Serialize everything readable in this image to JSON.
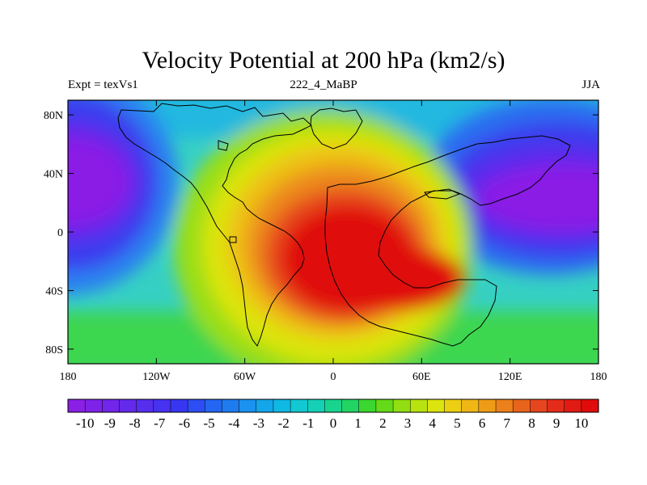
{
  "title": "Velocity Potential at 200 hPa (km2/s)",
  "left_subtitle": "Expt = texVs1",
  "center_subtitle": "222_4_MaBP",
  "right_subtitle": "JJA",
  "map": {
    "type": "filled-contour-map",
    "lon_range": [
      -180,
      180
    ],
    "lat_range": [
      -90,
      90
    ],
    "x_tick_labels": [
      "180",
      "120W",
      "60W",
      "0",
      "60E",
      "120E",
      "180"
    ],
    "x_tick_values": [
      -180,
      -120,
      -60,
      0,
      60,
      120,
      180
    ],
    "y_tick_labels": [
      "80N",
      "40N",
      "0",
      "40S",
      "80S"
    ],
    "y_tick_values": [
      80,
      40,
      0,
      -40,
      -80
    ],
    "field_features": [
      {
        "kind": "max",
        "lon": 5,
        "lat": -25,
        "value": 10
      },
      {
        "kind": "min",
        "lon": 140,
        "lat": 25,
        "value": -10
      },
      {
        "kind": "min",
        "lon": -175,
        "lat": 30,
        "value": -10
      }
    ]
  },
  "colorbar": {
    "labels": [
      "-10",
      "-9",
      "-8",
      "-7",
      "-6",
      "-5",
      "-4",
      "-3",
      "-2",
      "-1",
      "0",
      "1",
      "2",
      "3",
      "4",
      "5",
      "6",
      "7",
      "8",
      "9",
      "10"
    ],
    "colors": [
      "#8a1fe6",
      "#7e22e8",
      "#7126ea",
      "#632aec",
      "#552eee",
      "#4632ef",
      "#3736f0",
      "#2c4ef2",
      "#2466f2",
      "#1f7cf0",
      "#1a92ee",
      "#14a6ea",
      "#10b8e4",
      "#12c8d2",
      "#14d0b6",
      "#18d48e",
      "#22d464",
      "#3cd630",
      "#64da18",
      "#92de12",
      "#b8e210",
      "#dce40e",
      "#eccf12",
      "#f0b616",
      "#ee9c18",
      "#ec801a",
      "#e8641c",
      "#e6461e",
      "#e42c1a",
      "#e21a14",
      "#e00c0c"
    ]
  }
}
